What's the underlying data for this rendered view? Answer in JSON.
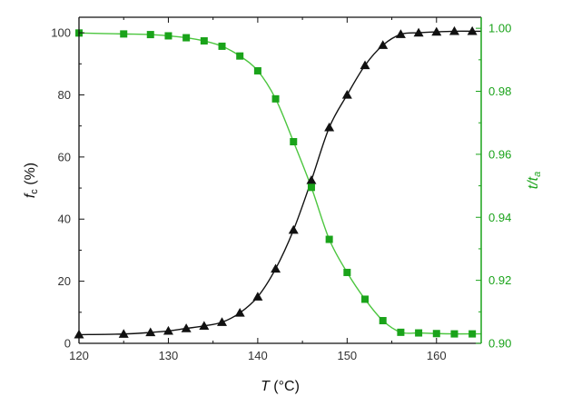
{
  "chart_data": {
    "type": "scatter",
    "title": "",
    "xlabel": {
      "main": "T",
      "unit": " (°C)"
    },
    "ylabel_left": {
      "main": "f",
      "sub": "c",
      "unit": " (%)"
    },
    "ylabel_right": {
      "main": "t/t",
      "sub": "a"
    },
    "xlim": [
      120,
      165
    ],
    "ylim_left": [
      0,
      105
    ],
    "ylim_right": [
      0.9,
      1.0035
    ],
    "xticks": [
      120,
      130,
      140,
      150,
      160
    ],
    "xtick_labels": [
      "120",
      "130",
      "140",
      "150",
      "160"
    ],
    "yticks_left": [
      0,
      20,
      40,
      60,
      80,
      100
    ],
    "ytick_labels_left": [
      "0",
      "20",
      "40",
      "60",
      "80",
      "100"
    ],
    "yticks_right": [
      0.9,
      0.92,
      0.94,
      0.96,
      0.98,
      1.0
    ],
    "ytick_labels_right": [
      "0.90",
      "0.92",
      "0.94",
      "0.96",
      "0.98",
      "1.00"
    ],
    "grid": false,
    "series": [
      {
        "name": "fc",
        "axis": "left",
        "marker": "triangle",
        "color": "#111111",
        "line_color": "#111111",
        "x": [
          120,
          125,
          128,
          130,
          132,
          134,
          136,
          138,
          140,
          142,
          144,
          146,
          148,
          150,
          152,
          154,
          156,
          158,
          160,
          162,
          164
        ],
        "y": [
          2.8,
          3.0,
          3.5,
          4.0,
          4.8,
          5.6,
          6.8,
          9.8,
          15.0,
          24.0,
          36.5,
          52.5,
          69.5,
          80.0,
          89.5,
          96.0,
          99.5,
          100.0,
          100.3,
          100.5,
          100.5
        ]
      },
      {
        "name": "t/ta",
        "axis": "right",
        "marker": "square",
        "color": "#1aa31a",
        "line_color": "#4cc63f",
        "x": [
          120,
          125,
          128,
          130,
          132,
          134,
          136,
          138,
          140,
          142,
          144,
          146,
          148,
          150,
          152,
          154,
          156,
          158,
          160,
          162,
          164
        ],
        "y": [
          0.9985,
          0.9982,
          0.998,
          0.9976,
          0.997,
          0.996,
          0.9943,
          0.9912,
          0.9865,
          0.9776,
          0.964,
          0.9495,
          0.933,
          0.9225,
          0.914,
          0.9072,
          0.9035,
          0.9033,
          0.9031,
          0.903,
          0.903
        ]
      }
    ]
  }
}
